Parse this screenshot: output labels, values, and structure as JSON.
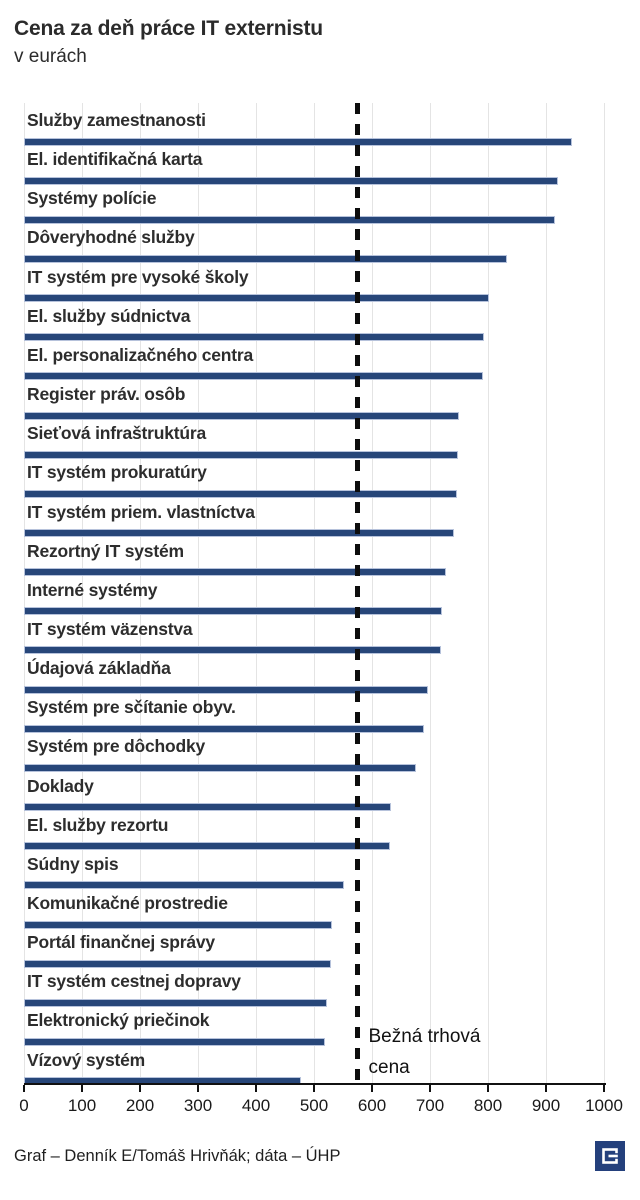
{
  "header": {
    "title": "Cena za deň práce IT externistu",
    "subtitle": "v eurách"
  },
  "chart_data": {
    "type": "bar",
    "orientation": "horizontal",
    "title": "Cena za deň práce IT externistu",
    "subtitle": "v eurách",
    "unit": "EUR",
    "categories": [
      "Služby zamestnanosti",
      "El. identifikačná karta",
      "Systémy polície",
      "Dôveryhodné služby",
      "IT systém pre vysoké školy",
      "El. služby súdnictva",
      "El. personalizačného centra",
      "Register práv. osôb",
      "Sieťová infraštruktúra",
      "IT systém prokuratúry",
      "IT systém priem. vlastníctva",
      "Rezortný IT systém",
      "Interné systémy",
      "IT systém väzenstva",
      "Údajová základňa",
      "Systém pre sčítanie obyv.",
      "Systém pre dôchodky",
      "Doklady",
      "El. služby rezortu",
      "Súdny spis",
      "Komunikačné prostredie",
      "Portál finančnej správy",
      "IT systém cestnej dopravy",
      "Elektronický priečinok",
      "Vízový systém"
    ],
    "values": [
      945,
      920,
      916,
      832,
      802,
      793,
      792,
      750,
      749,
      747,
      742,
      727,
      721,
      719,
      697,
      689,
      676,
      632,
      631,
      552,
      531,
      529,
      523,
      519,
      478
    ],
    "xlim": [
      0,
      1000
    ],
    "xticks": [
      "0",
      "100",
      "200",
      "300",
      "400",
      "500",
      "600",
      "700",
      "800",
      "900",
      "1000"
    ],
    "grid": true,
    "reference_line": {
      "value": 575,
      "label": "Bežná trhová cena",
      "label_lines": [
        "Bežná trhová",
        "cena"
      ]
    },
    "colors": {
      "bar": "#274679",
      "bar_edge": "#b6c2db",
      "gridline": "#e4e4e4",
      "axis": "#111111",
      "reference": "#0d0d0d"
    }
  },
  "footer": {
    "credit": "Graf – Denník E/Tomáš Hrivňák; dáta – ÚHP",
    "logo": "dennik-e-logo",
    "logo_color": "#24407c"
  }
}
